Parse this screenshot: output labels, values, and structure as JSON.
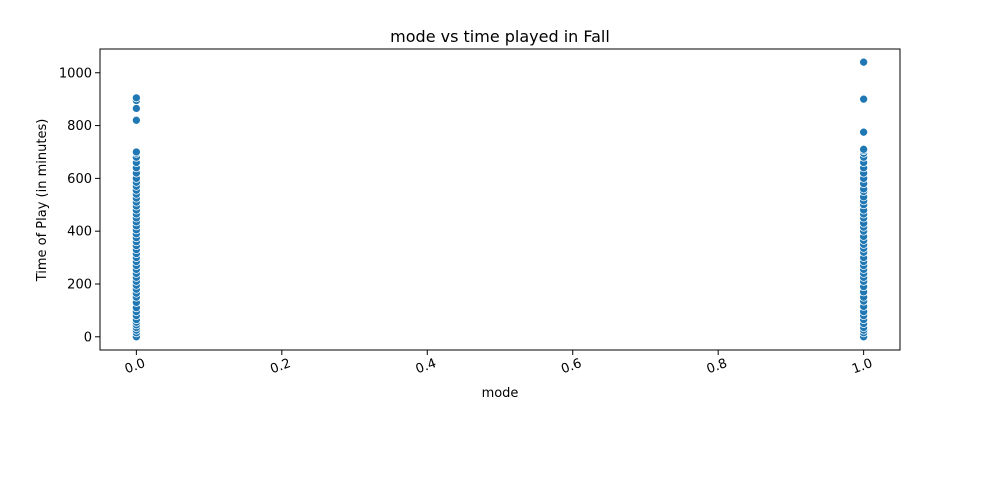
{
  "chart_data": {
    "type": "scatter",
    "title": "mode vs time played in Fall",
    "xlabel": "mode",
    "ylabel": "Time of Play (in minutes)",
    "xlim": [
      -0.05,
      1.05
    ],
    "ylim": [
      -50,
      1090
    ],
    "xticks": [
      0.0,
      0.2,
      0.4,
      0.6,
      0.8,
      1.0
    ],
    "xtick_labels": [
      "0.0",
      "0.2",
      "0.4",
      "0.6",
      "0.8",
      "1.0"
    ],
    "yticks": [
      0,
      200,
      400,
      600,
      800,
      1000
    ],
    "ytick_labels": [
      "0",
      "200",
      "400",
      "600",
      "800",
      "1000"
    ],
    "grid": false,
    "color": "#1f77b4",
    "series": [
      {
        "points": [
          [
            0,
            0
          ],
          [
            0,
            15
          ],
          [
            0,
            25
          ],
          [
            0,
            35
          ],
          [
            0,
            45
          ],
          [
            0,
            55
          ],
          [
            0,
            65
          ],
          [
            0,
            80
          ],
          [
            0,
            95
          ],
          [
            0,
            110
          ],
          [
            0,
            130
          ],
          [
            0,
            150
          ],
          [
            0,
            165
          ],
          [
            0,
            180
          ],
          [
            0,
            195
          ],
          [
            0,
            210
          ],
          [
            0,
            225
          ],
          [
            0,
            240
          ],
          [
            0,
            255
          ],
          [
            0,
            270
          ],
          [
            0,
            285
          ],
          [
            0,
            300
          ],
          [
            0,
            315
          ],
          [
            0,
            330
          ],
          [
            0,
            345
          ],
          [
            0,
            360
          ],
          [
            0,
            375
          ],
          [
            0,
            390
          ],
          [
            0,
            405
          ],
          [
            0,
            420
          ],
          [
            0,
            435
          ],
          [
            0,
            450
          ],
          [
            0,
            465
          ],
          [
            0,
            480
          ],
          [
            0,
            495
          ],
          [
            0,
            510
          ],
          [
            0,
            525
          ],
          [
            0,
            540
          ],
          [
            0,
            555
          ],
          [
            0,
            570
          ],
          [
            0,
            585
          ],
          [
            0,
            600
          ],
          [
            0,
            620
          ],
          [
            0,
            640
          ],
          [
            0,
            660
          ],
          [
            0,
            680
          ],
          [
            0,
            695
          ],
          [
            0,
            700
          ],
          [
            0,
            820
          ],
          [
            0,
            865
          ],
          [
            0,
            895
          ],
          [
            0,
            905
          ],
          [
            1,
            0
          ],
          [
            1,
            15
          ],
          [
            1,
            25
          ],
          [
            1,
            35
          ],
          [
            1,
            50
          ],
          [
            1,
            65
          ],
          [
            1,
            80
          ],
          [
            1,
            95
          ],
          [
            1,
            115
          ],
          [
            1,
            135
          ],
          [
            1,
            150
          ],
          [
            1,
            170
          ],
          [
            1,
            190
          ],
          [
            1,
            210
          ],
          [
            1,
            225
          ],
          [
            1,
            240
          ],
          [
            1,
            255
          ],
          [
            1,
            270
          ],
          [
            1,
            285
          ],
          [
            1,
            300
          ],
          [
            1,
            320
          ],
          [
            1,
            335
          ],
          [
            1,
            350
          ],
          [
            1,
            365
          ],
          [
            1,
            380
          ],
          [
            1,
            400
          ],
          [
            1,
            415
          ],
          [
            1,
            430
          ],
          [
            1,
            450
          ],
          [
            1,
            465
          ],
          [
            1,
            480
          ],
          [
            1,
            500
          ],
          [
            1,
            515
          ],
          [
            1,
            530
          ],
          [
            1,
            550
          ],
          [
            1,
            560
          ],
          [
            1,
            580
          ],
          [
            1,
            600
          ],
          [
            1,
            620
          ],
          [
            1,
            640
          ],
          [
            1,
            660
          ],
          [
            1,
            680
          ],
          [
            1,
            695
          ],
          [
            1,
            705
          ],
          [
            1,
            710
          ],
          [
            1,
            775
          ],
          [
            1,
            900
          ],
          [
            1,
            1040
          ]
        ]
      }
    ]
  }
}
